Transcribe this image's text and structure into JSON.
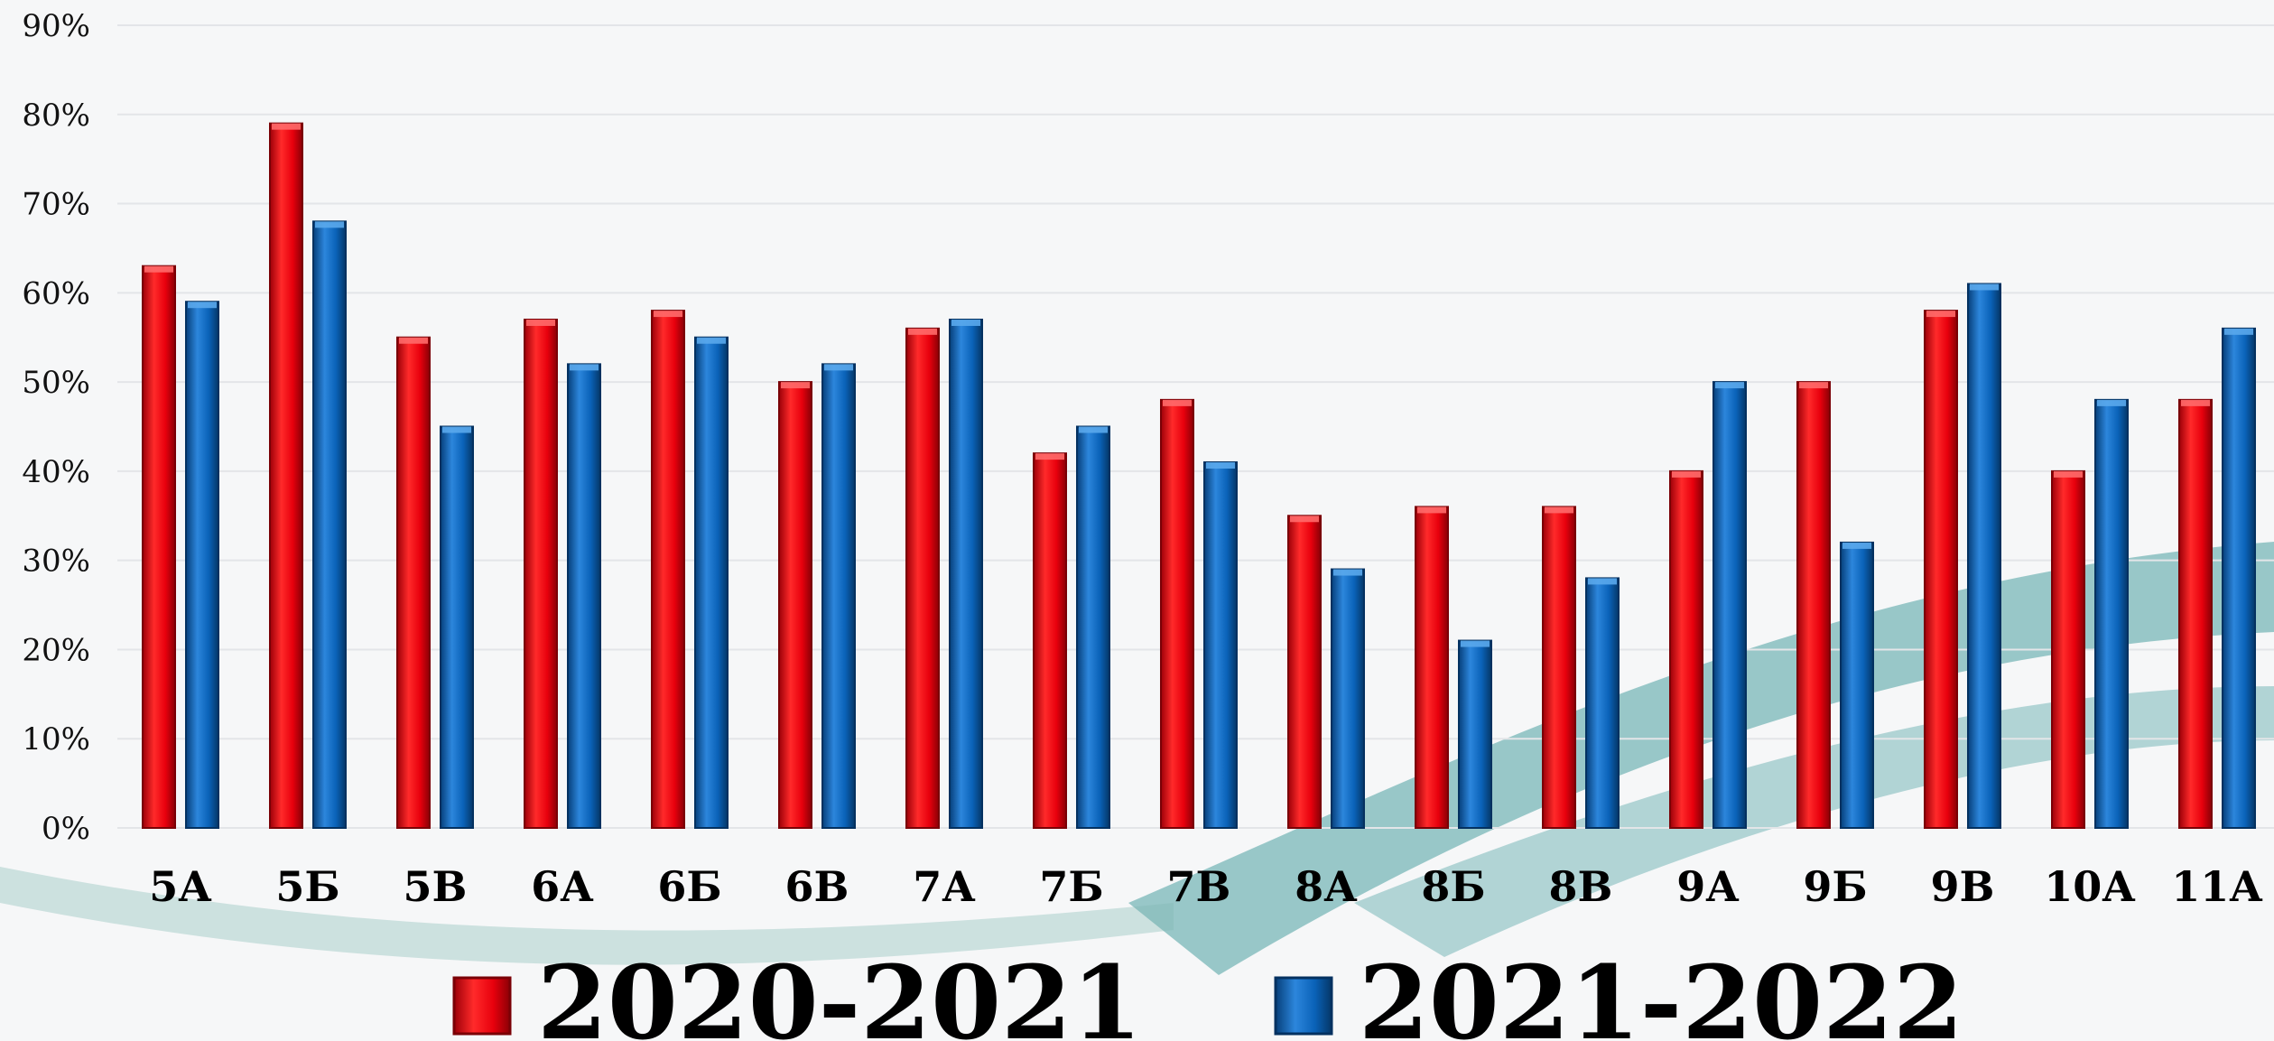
{
  "colors": {
    "background": "#f6f7f8",
    "series_2020": "#e8000d",
    "series_2021": "#0a62b8",
    "grid": "#e3e5e8",
    "decor_teal": "#4aa0a0"
  },
  "chart_data": {
    "type": "bar",
    "title": "",
    "xlabel": "",
    "ylabel": "",
    "ylim": [
      0,
      90
    ],
    "yticks": [
      "0%",
      "10%",
      "20%",
      "30%",
      "40%",
      "50%",
      "60%",
      "70%",
      "80%",
      "90%"
    ],
    "grid": true,
    "legend_position": "bottom",
    "categories": [
      "5А",
      "5Б",
      "5В",
      "6А",
      "6Б",
      "6В",
      "7А",
      "7Б",
      "7В",
      "8А",
      "8Б",
      "8В",
      "9А",
      "9Б",
      "9В",
      "10А",
      "11А"
    ],
    "series": [
      {
        "name": "2020-2021",
        "color": "#e8000d",
        "values": [
          63,
          79,
          55,
          57,
          58,
          50,
          56,
          42,
          48,
          35,
          36,
          36,
          40,
          50,
          58,
          40,
          48
        ]
      },
      {
        "name": "2021-2022",
        "color": "#0a62b8",
        "values": [
          59,
          68,
          45,
          52,
          55,
          52,
          57,
          45,
          41,
          29,
          21,
          28,
          50,
          32,
          61,
          48,
          56
        ]
      }
    ]
  }
}
